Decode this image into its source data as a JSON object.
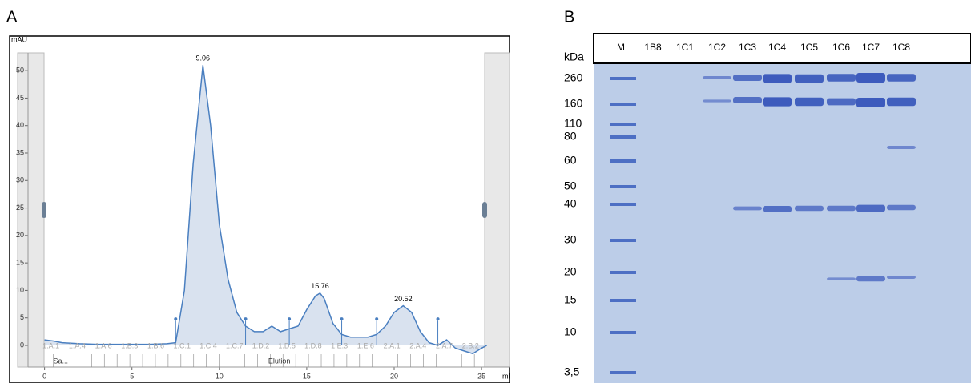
{
  "chart_data": {
    "type": "line",
    "panel_label": "A",
    "y_label": "mAU",
    "x_label": "ml",
    "color": "#4a7fc0",
    "x": [
      0,
      0.5,
      1,
      2,
      3,
      4,
      5,
      6,
      7,
      7.5,
      8,
      8.5,
      9.06,
      9.5,
      10,
      10.5,
      11,
      11.5,
      12,
      12.5,
      13,
      13.5,
      14,
      14.5,
      15,
      15.5,
      15.76,
      16,
      16.5,
      17,
      17.5,
      18,
      18.5,
      19,
      19.5,
      20,
      20.52,
      21,
      21.5,
      22,
      22.5,
      23,
      23.5,
      24,
      24.5,
      25,
      25.3
    ],
    "values": [
      1,
      0.8,
      0.5,
      0.3,
      0.2,
      0.2,
      0.2,
      0.2,
      0.3,
      0.5,
      10,
      33,
      51,
      40,
      22,
      12,
      6,
      3.5,
      2.5,
      2.5,
      3.5,
      2.5,
      3,
      3.5,
      6.5,
      9,
      9.5,
      8.5,
      4,
      2,
      1.5,
      1.5,
      1.5,
      2,
      3.5,
      6,
      7.2,
      6,
      2.5,
      0.5,
      0,
      1,
      -0.5,
      -1,
      -1.5,
      -0.5,
      0
    ],
    "peaks": [
      9.06,
      15.76,
      20.52
    ],
    "fractions": [
      "1.A.1",
      "1.A.4",
      "1.A.6",
      "1.B.3",
      "1.B.6",
      "1.C.1",
      "1.C.4",
      "1.C.7",
      "1.D.2",
      "1.D.5",
      "1.D.8",
      "1.E.3",
      "1.E.6",
      "2.A.1",
      "2.A.4",
      "2.A.7",
      "2.B.2"
    ],
    "phases": [
      "Sa...",
      "Elution"
    ],
    "xlim": [
      -2,
      26.6
    ],
    "ylim": [
      -3.5,
      56
    ],
    "xticks": [
      0,
      5,
      10,
      15,
      20,
      25
    ],
    "yticks": [
      0,
      5,
      10,
      15,
      20,
      25,
      30,
      35,
      40,
      45,
      50
    ]
  },
  "gel": {
    "panel_label": "B",
    "unit_label": "kDa",
    "lanes": [
      "M",
      "1B8",
      "1C1",
      "1C2",
      "1C3",
      "1C4",
      "1C5",
      "1C6",
      "1C7",
      "1C8"
    ],
    "markers": [
      260,
      160,
      110,
      80,
      60,
      50,
      40,
      30,
      20,
      15,
      10,
      {
        "value": 3.5,
        "label": "3,5"
      }
    ]
  }
}
